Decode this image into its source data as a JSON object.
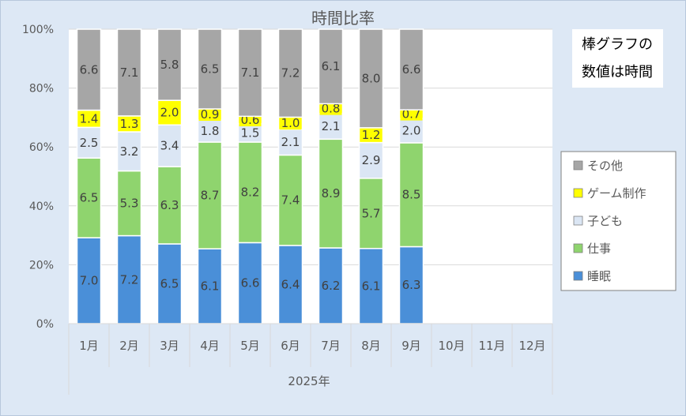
{
  "chart_data": {
    "type": "bar",
    "stacked": true,
    "percent_stacked": true,
    "title": "時間比率",
    "categories": [
      "1月",
      "2月",
      "3月",
      "4月",
      "5月",
      "6月",
      "7月",
      "8月",
      "9月",
      "10月",
      "11月",
      "12月"
    ],
    "group_label": "2025年",
    "y_ticks": [
      "0%",
      "20%",
      "40%",
      "60%",
      "80%",
      "100%"
    ],
    "ylim": [
      0,
      100
    ],
    "grid": true,
    "legend_position": "right",
    "note": [
      "棒グラフの",
      "数値は時間"
    ],
    "series": [
      {
        "name": "睡眠",
        "color": "#4a8fd8",
        "values": [
          7.0,
          7.2,
          6.5,
          6.1,
          6.6,
          6.4,
          6.2,
          6.1,
          6.3,
          null,
          null,
          null
        ]
      },
      {
        "name": "仕事",
        "color": "#8fd46e",
        "values": [
          6.5,
          5.3,
          6.3,
          8.7,
          8.2,
          7.4,
          8.9,
          5.7,
          8.5,
          null,
          null,
          null
        ]
      },
      {
        "name": "子ども",
        "color": "#dbe6f4",
        "values": [
          2.5,
          3.2,
          3.4,
          1.8,
          1.5,
          2.1,
          2.1,
          2.9,
          2.0,
          null,
          null,
          null
        ]
      },
      {
        "name": "ゲーム制作",
        "color": "#ffff00",
        "values": [
          1.4,
          1.3,
          2.0,
          0.9,
          0.6,
          1.0,
          0.8,
          1.2,
          0.7,
          null,
          null,
          null
        ]
      },
      {
        "name": "その他",
        "color": "#a6a6a6",
        "values": [
          6.6,
          7.1,
          5.8,
          6.5,
          7.1,
          7.2,
          6.1,
          8.0,
          6.6,
          null,
          null,
          null
        ]
      }
    ],
    "legend_order": [
      "その他",
      "ゲーム制作",
      "子ども",
      "仕事",
      "睡眠"
    ]
  }
}
